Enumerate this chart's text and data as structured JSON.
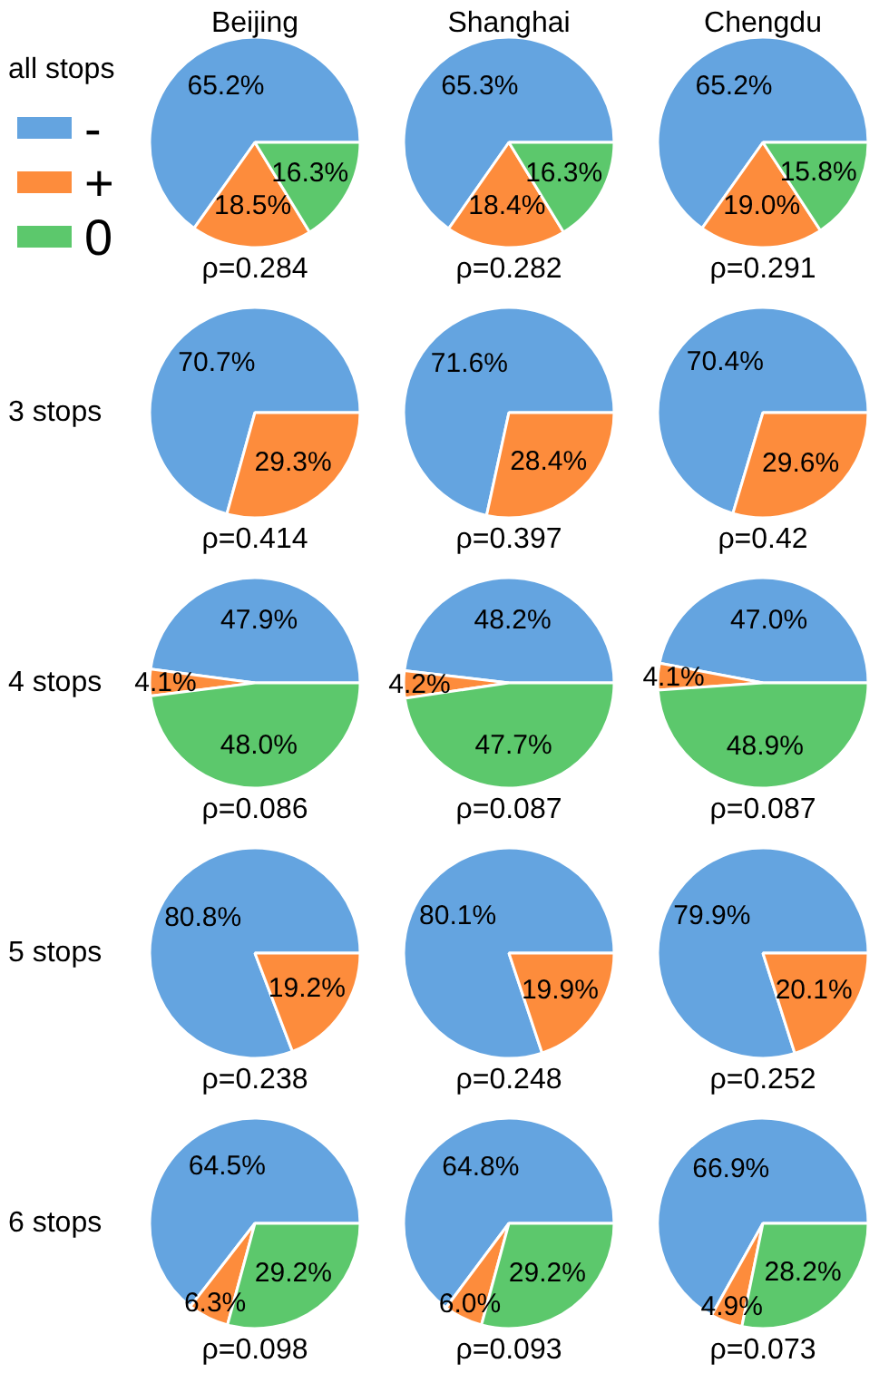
{
  "chart_data": [
    {
      "type": "pie",
      "title": "Beijing",
      "ylabel": "all stops",
      "legend": "left",
      "categories": [
        "-",
        "+",
        "0"
      ],
      "values": [
        65.2,
        18.5,
        16.3
      ],
      "colors": [
        "#64a4e0",
        "#fd8c3c",
        "#5cc86c"
      ],
      "value_labels": [
        "65.2%",
        "18.5%",
        "16.3%"
      ],
      "annotations": [
        "ρ=0.284"
      ]
    },
    {
      "type": "pie",
      "title": "Shanghai",
      "categories": [
        null,
        null,
        null
      ],
      "values": [
        65.3,
        18.4,
        16.3
      ],
      "colors": [
        "#64a4e0",
        "#fd8c3c",
        "#5cc86c"
      ],
      "value_labels": [
        "65.3%",
        "18.4%",
        "16.3%"
      ],
      "annotations": [
        "ρ=0.282"
      ]
    },
    {
      "type": "pie",
      "title": "Chengdu",
      "categories": [
        null,
        null,
        null
      ],
      "values": [
        65.2,
        19.0,
        15.8
      ],
      "colors": [
        "#64a4e0",
        "#fd8c3c",
        "#5cc86c"
      ],
      "value_labels": [
        "65.2%",
        "19.0%",
        "15.8%"
      ],
      "annotations": [
        "ρ=0.291"
      ]
    },
    {
      "type": "pie",
      "ylabel": "3 stops",
      "categories": [
        null,
        null
      ],
      "values": [
        70.7,
        29.3
      ],
      "colors": [
        "#64a4e0",
        "#fd8c3c"
      ],
      "value_labels": [
        "70.7%",
        "29.3%"
      ],
      "annotations": [
        "ρ=0.414"
      ]
    },
    {
      "type": "pie",
      "categories": [
        null,
        null
      ],
      "values": [
        71.6,
        28.4
      ],
      "colors": [
        "#64a4e0",
        "#fd8c3c"
      ],
      "value_labels": [
        "71.6%",
        "28.4%"
      ],
      "annotations": [
        "ρ=0.397"
      ]
    },
    {
      "type": "pie",
      "categories": [
        null,
        null
      ],
      "values": [
        70.4,
        29.6
      ],
      "colors": [
        "#64a4e0",
        "#fd8c3c"
      ],
      "value_labels": [
        "70.4%",
        "29.6%"
      ],
      "annotations": [
        "ρ=0.42"
      ]
    },
    {
      "type": "pie",
      "ylabel": "4 stops",
      "categories": [
        null,
        null,
        null
      ],
      "values": [
        47.9,
        4.1,
        48.0
      ],
      "colors": [
        "#64a4e0",
        "#fd8c3c",
        "#5cc86c"
      ],
      "value_labels": [
        "47.9%",
        "4.1%",
        "48.0%"
      ],
      "annotations": [
        "ρ=0.086"
      ]
    },
    {
      "type": "pie",
      "categories": [
        null,
        null,
        null
      ],
      "values": [
        48.2,
        4.2,
        47.7
      ],
      "colors": [
        "#64a4e0",
        "#fd8c3c",
        "#5cc86c"
      ],
      "value_labels": [
        "48.2%",
        "4.2%",
        "47.7%"
      ],
      "annotations": [
        "ρ=0.087"
      ]
    },
    {
      "type": "pie",
      "categories": [
        null,
        null,
        null
      ],
      "values": [
        47.0,
        4.1,
        48.9
      ],
      "colors": [
        "#64a4e0",
        "#fd8c3c",
        "#5cc86c"
      ],
      "value_labels": [
        "47.0%",
        "4.1%",
        "48.9%"
      ],
      "annotations": [
        "ρ=0.087"
      ]
    },
    {
      "type": "pie",
      "ylabel": "5 stops",
      "categories": [
        null,
        null
      ],
      "values": [
        80.8,
        19.2
      ],
      "colors": [
        "#64a4e0",
        "#fd8c3c"
      ],
      "value_labels": [
        "80.8%",
        "19.2%"
      ],
      "annotations": [
        "ρ=0.238"
      ]
    },
    {
      "type": "pie",
      "categories": [
        null,
        null
      ],
      "values": [
        80.1,
        19.9
      ],
      "colors": [
        "#64a4e0",
        "#fd8c3c"
      ],
      "value_labels": [
        "80.1%",
        "19.9%"
      ],
      "annotations": [
        "ρ=0.248"
      ]
    },
    {
      "type": "pie",
      "categories": [
        null,
        null
      ],
      "values": [
        79.9,
        20.1
      ],
      "colors": [
        "#64a4e0",
        "#fd8c3c"
      ],
      "value_labels": [
        "79.9%",
        "20.1%"
      ],
      "annotations": [
        "ρ=0.252"
      ]
    },
    {
      "type": "pie",
      "ylabel": "6 stops",
      "categories": [
        null,
        null,
        null
      ],
      "values": [
        64.5,
        6.3,
        29.2
      ],
      "colors": [
        "#64a4e0",
        "#fd8c3c",
        "#5cc86c"
      ],
      "value_labels": [
        "64.5%",
        "6.3%",
        "29.2%"
      ],
      "annotations": [
        "ρ=0.098"
      ]
    },
    {
      "type": "pie",
      "categories": [
        null,
        null,
        null
      ],
      "values": [
        64.8,
        6.0,
        29.2
      ],
      "colors": [
        "#64a4e0",
        "#fd8c3c",
        "#5cc86c"
      ],
      "value_labels": [
        "64.8%",
        "6.0%",
        "29.2%"
      ],
      "annotations": [
        "ρ=0.093"
      ]
    },
    {
      "type": "pie",
      "categories": [
        null,
        null,
        null
      ],
      "values": [
        66.9,
        4.9,
        28.2
      ],
      "colors": [
        "#64a4e0",
        "#fd8c3c",
        "#5cc86c"
      ],
      "value_labels": [
        "66.9%",
        "4.9%",
        "28.2%"
      ],
      "annotations": [
        "ρ=0.073"
      ]
    }
  ]
}
